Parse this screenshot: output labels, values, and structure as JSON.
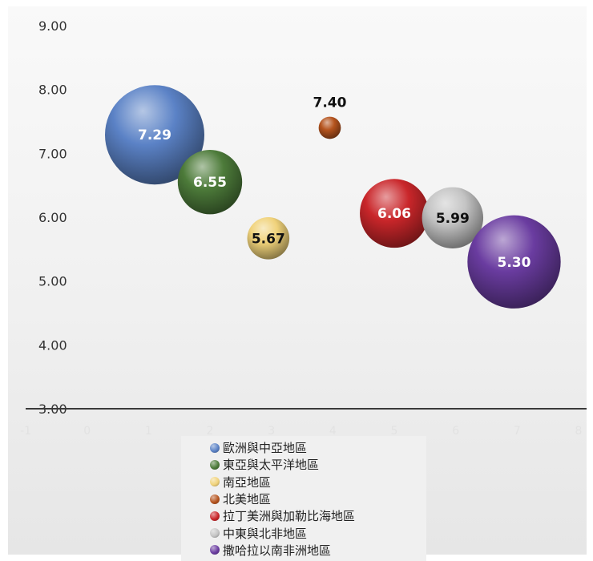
{
  "chart_data": {
    "type": "bubble",
    "title": "",
    "xlabel": "",
    "ylabel": "",
    "xlim": [
      -1,
      8
    ],
    "ylim": [
      3,
      9
    ],
    "y_ticks": [
      "3.00",
      "4.00",
      "5.00",
      "6.00",
      "7.00",
      "8.00",
      "9.00"
    ],
    "x_ticks": [
      "-1",
      "0",
      "1",
      "2",
      "3",
      "4",
      "5",
      "6",
      "7",
      "8"
    ],
    "grid": false,
    "legend_position": "bottom",
    "series": [
      {
        "name": "歐洲與中亞地區",
        "x": 1.1,
        "y": 7.29,
        "label": "7.29",
        "size": 1.0,
        "color": "#5b82c6",
        "label_color": "#ffffff"
      },
      {
        "name": "東亞與太平洋地區",
        "x": 2.0,
        "y": 6.55,
        "label": "6.55",
        "size": 0.42,
        "color": "#4d7b3a",
        "label_color": "#ffffff"
      },
      {
        "name": "南亞地區",
        "x": 2.95,
        "y": 5.67,
        "label": "5.67",
        "size": 0.18,
        "color": "#f0d27a",
        "label_color": "#111111"
      },
      {
        "name": "北美地區",
        "x": 3.95,
        "y": 7.4,
        "label": "7.40",
        "size": 0.05,
        "color": "#b5541e",
        "label_color": "#111111"
      },
      {
        "name": "拉丁美洲與加勒比海地區",
        "x": 5.0,
        "y": 6.06,
        "label": "6.06",
        "size": 0.48,
        "color": "#c9262a",
        "label_color": "#ffffff"
      },
      {
        "name": "中東與北非地區",
        "x": 5.95,
        "y": 5.99,
        "label": "5.99",
        "size": 0.38,
        "color": "#c4c4c4",
        "label_color": "#111111"
      },
      {
        "name": "撒哈拉以南非洲地區",
        "x": 6.95,
        "y": 5.3,
        "label": "5.30",
        "size": 0.88,
        "color": "#6a3ca0",
        "label_color": "#ffffff"
      }
    ]
  }
}
